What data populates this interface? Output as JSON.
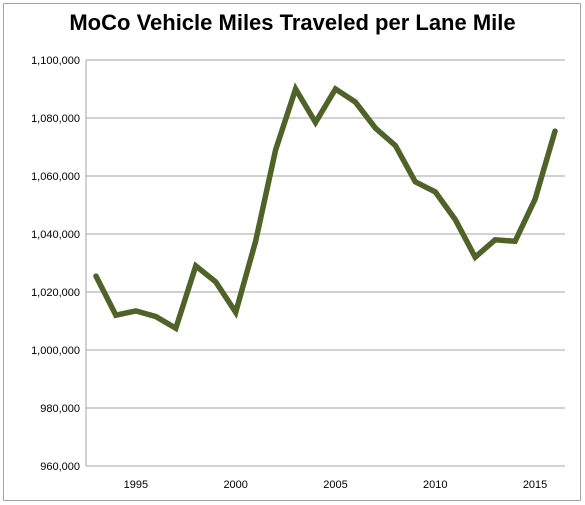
{
  "chart_data": {
    "type": "line",
    "title": "MoCo Vehicle Miles Traveled per Lane Mile",
    "xlabel": "",
    "ylabel": "",
    "ylim": [
      960000,
      1100000
    ],
    "yticks": [
      960000,
      980000,
      1000000,
      1020000,
      1040000,
      1060000,
      1080000,
      1100000
    ],
    "ytick_labels": [
      "960,000",
      "980,000",
      "1,000,000",
      "1,020,000",
      "1,040,000",
      "1,060,000",
      "1,080,000",
      "1,100,000"
    ],
    "xlim": [
      1992.5,
      2016.5
    ],
    "xticks": [
      1995,
      2000,
      2005,
      2010,
      2015
    ],
    "xtick_labels": [
      "1995",
      "2000",
      "2005",
      "2010",
      "2015"
    ],
    "grid": "horizontal",
    "legend": "none",
    "series": [
      {
        "color": "#4f6228",
        "x": [
          1993,
          1994,
          1995,
          1996,
          1997,
          1998,
          1999,
          2000,
          2001,
          2002,
          2003,
          2004,
          2005,
          2006,
          2007,
          2008,
          2009,
          2010,
          2011,
          2012,
          2013,
          2014,
          2015,
          2016
        ],
        "values": [
          1025500,
          1012000,
          1013500,
          1011500,
          1007500,
          1029000,
          1023500,
          1013000,
          1037500,
          1069000,
          1090000,
          1078500,
          1090000,
          1085500,
          1076500,
          1070500,
          1058000,
          1054500,
          1045000,
          1032000,
          1038000,
          1037500,
          1052000,
          1075500
        ]
      }
    ]
  }
}
